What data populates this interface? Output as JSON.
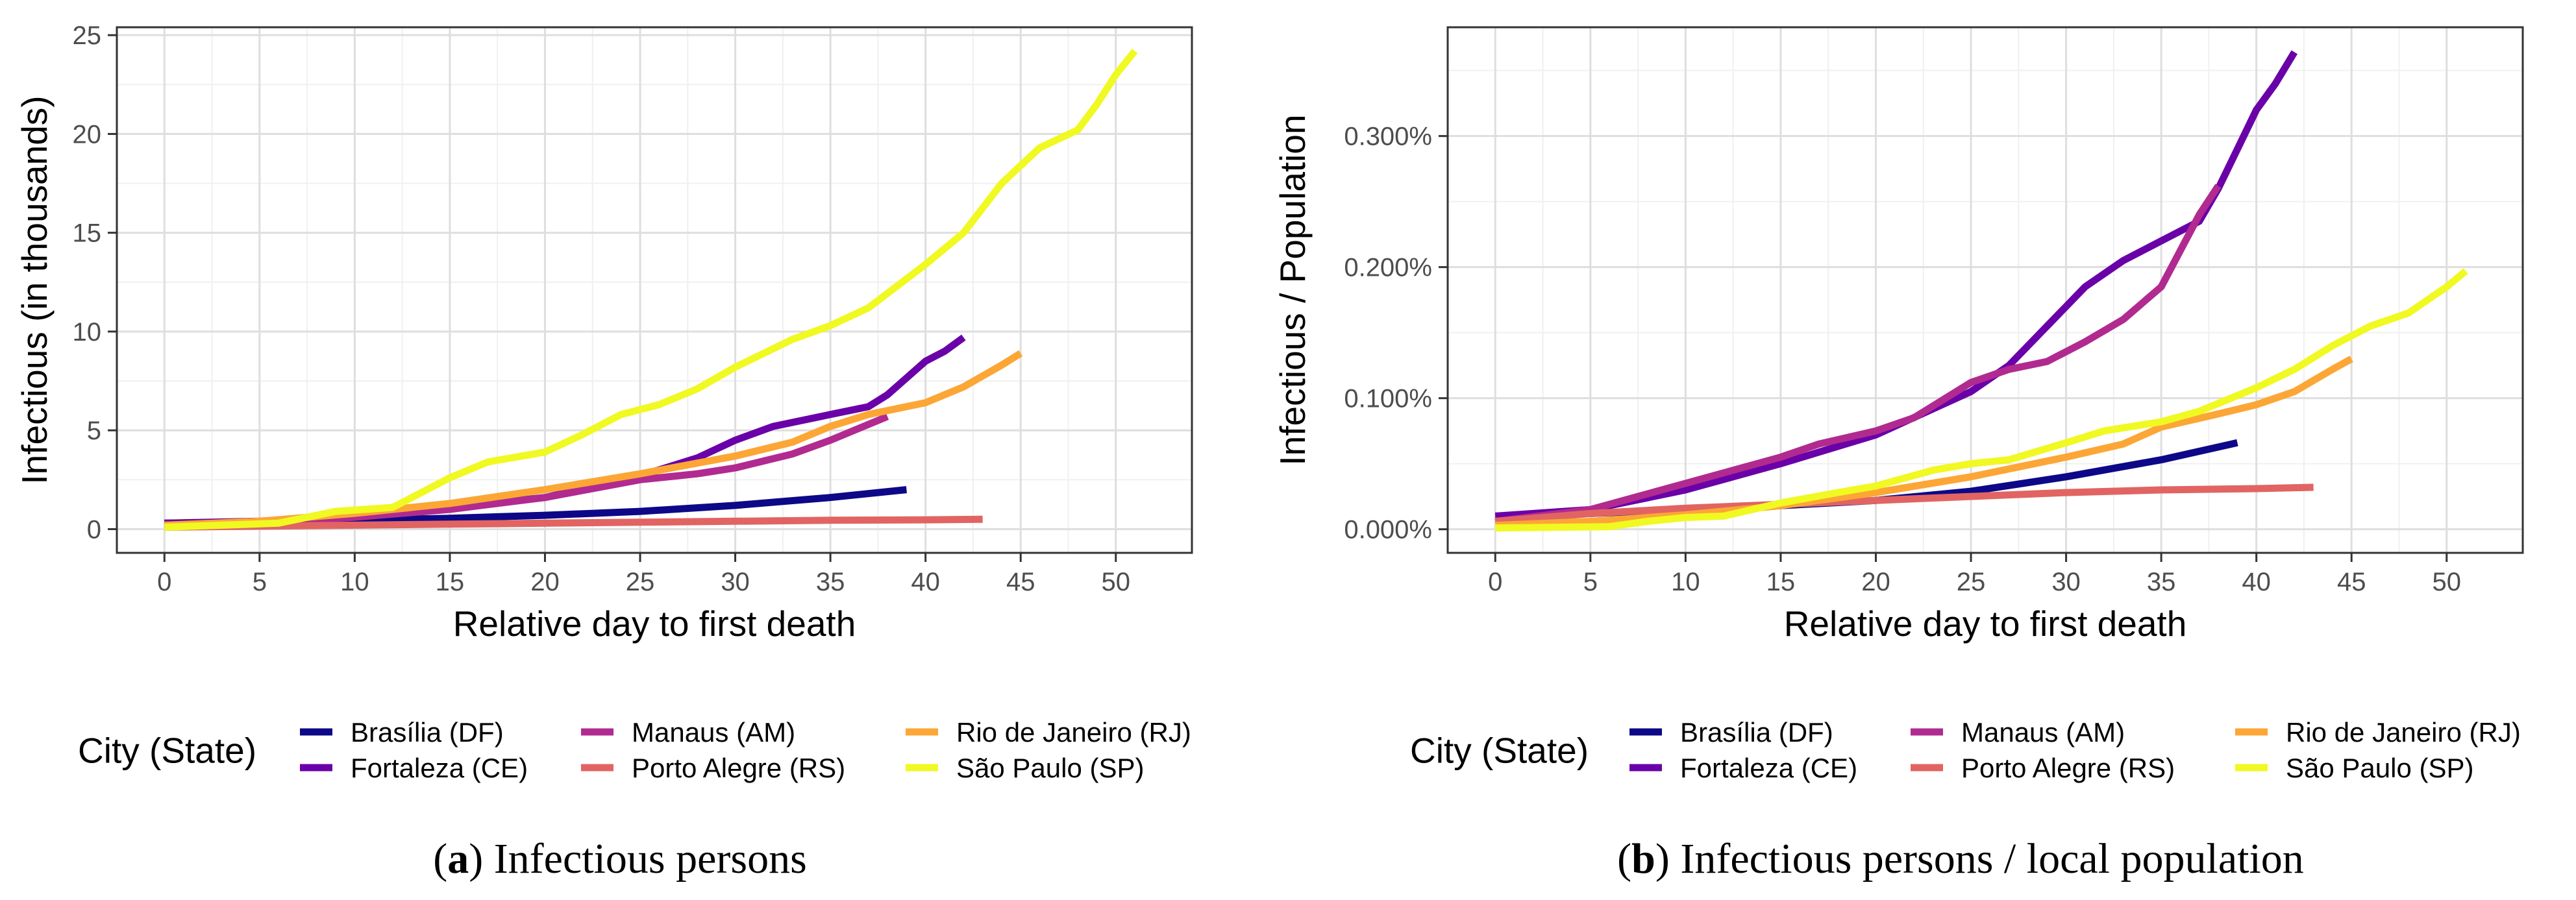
{
  "chart_data": [
    {
      "type": "line",
      "caption_letter": "a",
      "caption_text": " Infectious persons",
      "xlabel": "Relative day to first death",
      "ylabel": "Infectious (in thousands)",
      "x_ticks": [
        0,
        5,
        10,
        15,
        20,
        25,
        30,
        35,
        40,
        45,
        50
      ],
      "y_ticks": [
        0,
        5,
        10,
        15,
        20,
        25
      ],
      "y_tick_labels": [
        "0",
        "5",
        "10",
        "15",
        "20",
        "25"
      ],
      "xlim": [
        -2.5,
        54
      ],
      "ylim": [
        -1.2,
        25.4
      ],
      "grid": true,
      "legend_title": "City (State)",
      "legend_position": "bottom",
      "series": [
        {
          "name": "Brasília (DF)",
          "color": "#0d0887",
          "x": [
            0,
            5,
            10,
            15,
            20,
            25,
            30,
            35,
            39
          ],
          "y": [
            0.3,
            0.35,
            0.45,
            0.55,
            0.7,
            0.9,
            1.2,
            1.6,
            2.0
          ]
        },
        {
          "name": "Fortaleza (CE)",
          "color": "#6a00a8",
          "x": [
            0,
            5,
            10,
            15,
            20,
            25,
            28,
            30,
            32,
            35,
            37,
            38,
            40,
            41,
            42
          ],
          "y": [
            0.3,
            0.4,
            0.7,
            1.1,
            1.6,
            2.7,
            3.6,
            4.5,
            5.2,
            5.8,
            6.2,
            6.8,
            8.5,
            9.0,
            9.7
          ]
        },
        {
          "name": "Manaus (AM)",
          "color": "#b12a90",
          "x": [
            0,
            5,
            10,
            15,
            20,
            25,
            28,
            30,
            33,
            35,
            37,
            38
          ],
          "y": [
            0.2,
            0.35,
            0.6,
            1.0,
            1.6,
            2.5,
            2.8,
            3.1,
            3.8,
            4.5,
            5.3,
            5.7
          ]
        },
        {
          "name": "Porto Alegre (RS)",
          "color": "#e16462",
          "x": [
            0,
            5,
            10,
            15,
            20,
            25,
            30,
            35,
            40,
            43
          ],
          "y": [
            0.1,
            0.15,
            0.2,
            0.25,
            0.3,
            0.35,
            0.4,
            0.45,
            0.47,
            0.5
          ]
        },
        {
          "name": "Rio de Janeiro (RJ)",
          "color": "#fca636",
          "x": [
            0,
            5,
            10,
            15,
            20,
            25,
            30,
            33,
            35,
            37,
            40,
            42,
            44,
            45
          ],
          "y": [
            0.2,
            0.4,
            0.8,
            1.3,
            2.0,
            2.8,
            3.7,
            4.4,
            5.2,
            5.8,
            6.4,
            7.2,
            8.3,
            8.9
          ]
        },
        {
          "name": "São Paulo (SP)",
          "color": "#f0f921",
          "x": [
            0,
            6,
            8,
            9,
            12,
            15,
            17,
            20,
            22,
            24,
            26,
            28,
            30,
            33,
            35,
            37,
            40,
            42,
            44,
            46,
            48,
            49,
            50,
            51
          ],
          "y": [
            0.1,
            0.3,
            0.7,
            0.9,
            1.1,
            2.6,
            3.4,
            3.9,
            4.8,
            5.8,
            6.3,
            7.1,
            8.2,
            9.6,
            10.3,
            11.2,
            13.4,
            15.0,
            17.5,
            19.3,
            20.2,
            21.5,
            23.0,
            24.2
          ]
        }
      ]
    },
    {
      "type": "line",
      "caption_letter": "b",
      "caption_text": " Infectious persons / local population",
      "xlabel": "Relative day to first death",
      "ylabel": "Infectious / Population",
      "x_ticks": [
        0,
        5,
        10,
        15,
        20,
        25,
        30,
        35,
        40,
        45,
        50
      ],
      "y_ticks": [
        0,
        0.1,
        0.2,
        0.3
      ],
      "y_tick_labels": [
        "0.000%",
        "0.100%",
        "0.200%",
        "0.300%"
      ],
      "xlim": [
        -2.5,
        54
      ],
      "ylim": [
        -0.018,
        0.383
      ],
      "grid": true,
      "legend_title": "City (State)",
      "legend_position": "bottom",
      "series": [
        {
          "name": "Brasília (DF)",
          "color": "#0d0887",
          "x": [
            0,
            5,
            10,
            15,
            20,
            25,
            30,
            35,
            39
          ],
          "y": [
            0.01,
            0.012,
            0.015,
            0.018,
            0.022,
            0.029,
            0.04,
            0.053,
            0.066
          ]
        },
        {
          "name": "Fortaleza (CE)",
          "color": "#6a00a8",
          "x": [
            0,
            5,
            10,
            15,
            20,
            25,
            27,
            29,
            31,
            33,
            35,
            37,
            38,
            39,
            40,
            41,
            42
          ],
          "y": [
            0.01,
            0.015,
            0.03,
            0.05,
            0.072,
            0.105,
            0.125,
            0.155,
            0.185,
            0.205,
            0.22,
            0.235,
            0.26,
            0.29,
            0.32,
            0.34,
            0.364
          ]
        },
        {
          "name": "Manaus (AM)",
          "color": "#b12a90",
          "x": [
            0,
            5,
            10,
            15,
            17,
            20,
            22,
            25,
            27,
            29,
            31,
            33,
            35,
            37,
            38
          ],
          "y": [
            0.006,
            0.015,
            0.035,
            0.055,
            0.065,
            0.075,
            0.085,
            0.112,
            0.122,
            0.128,
            0.143,
            0.16,
            0.185,
            0.24,
            0.262
          ]
        },
        {
          "name": "Porto Alegre (RS)",
          "color": "#e16462",
          "x": [
            0,
            5,
            10,
            15,
            20,
            25,
            30,
            35,
            40,
            43
          ],
          "y": [
            0.006,
            0.012,
            0.016,
            0.019,
            0.022,
            0.025,
            0.028,
            0.03,
            0.031,
            0.032
          ]
        },
        {
          "name": "Rio de Janeiro (RJ)",
          "color": "#fca636",
          "x": [
            0,
            5,
            10,
            15,
            20,
            25,
            30,
            33,
            35,
            38,
            40,
            42,
            44,
            45
          ],
          "y": [
            0.003,
            0.006,
            0.011,
            0.018,
            0.028,
            0.04,
            0.055,
            0.065,
            0.078,
            0.088,
            0.095,
            0.105,
            0.122,
            0.13
          ]
        },
        {
          "name": "São Paulo (SP)",
          "color": "#f0f921",
          "x": [
            0,
            6,
            8,
            10,
            12,
            15,
            18,
            20,
            23,
            25,
            27,
            30,
            32,
            35,
            37,
            40,
            42,
            44,
            46,
            48,
            50,
            51
          ],
          "y": [
            0.001,
            0.002,
            0.006,
            0.009,
            0.01,
            0.02,
            0.028,
            0.033,
            0.045,
            0.05,
            0.053,
            0.066,
            0.075,
            0.082,
            0.09,
            0.108,
            0.122,
            0.14,
            0.155,
            0.165,
            0.185,
            0.197
          ]
        }
      ]
    }
  ]
}
